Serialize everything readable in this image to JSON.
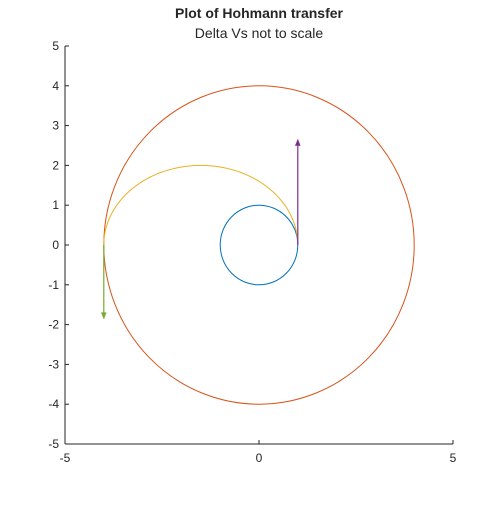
{
  "chart_data": {
    "type": "line",
    "title": "Plot of Hohmann transfer",
    "subtitle": "Delta Vs not to scale",
    "xlabel": "",
    "ylabel": "",
    "xlim": [
      -5,
      5
    ],
    "ylim": [
      -5,
      5
    ],
    "xticks": [
      -5,
      0,
      5
    ],
    "yticks": [
      -5,
      -4,
      -3,
      -2,
      -1,
      0,
      1,
      2,
      3,
      4,
      5
    ],
    "grid": false,
    "series": [
      {
        "kind": "circle",
        "center": [
          0,
          0
        ],
        "radius": 1,
        "color": "#0072BD"
      },
      {
        "kind": "circle",
        "center": [
          0,
          0
        ],
        "radius": 4,
        "color": "#D95319"
      },
      {
        "kind": "half-ellipse",
        "center": [
          -1.5,
          0
        ],
        "semi_major": 2.5,
        "semi_minor": 2,
        "color": "#EDB120"
      },
      {
        "kind": "arrow",
        "from": [
          1,
          0
        ],
        "to": [
          1,
          2.65
        ],
        "color": "#7E2F8E"
      },
      {
        "kind": "arrow",
        "from": [
          -4,
          0
        ],
        "to": [
          -4,
          -1.85
        ],
        "color": "#77AC30"
      }
    ]
  }
}
